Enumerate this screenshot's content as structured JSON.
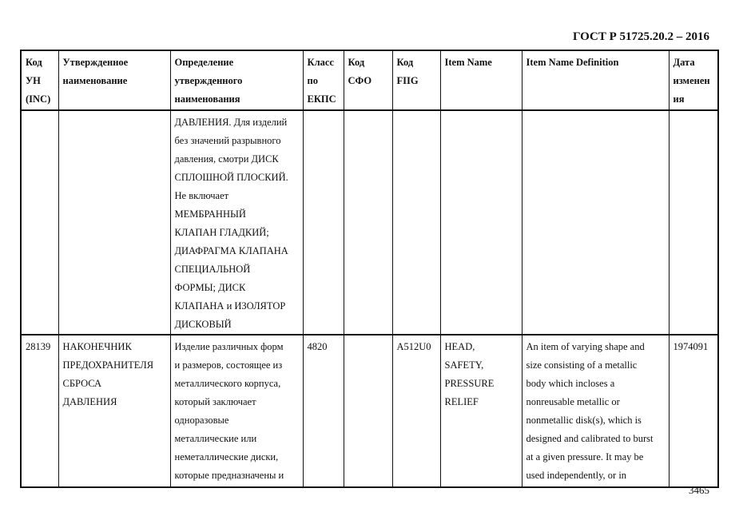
{
  "header": {
    "doc_title": "ГОСТ Р 51725.20.2 – 2016"
  },
  "footer": {
    "page_number": "3465"
  },
  "table": {
    "columns": [
      "Код\nУН\n(INC)",
      "Утвержденное\nнаименование",
      "Определение\nутвержденного\nнаименования",
      "Класс\nпо\nЕКПС",
      "Код\nСФО",
      "Код\nFIIG",
      "Item Name",
      "Item Name Definition",
      "Дата\nизменен\nия"
    ],
    "rows": [
      [
        "",
        "",
        "ДАВЛЕНИЯ. Для изделий\nбез значений разрывного\nдавления, смотри ДИСК\nСПЛОШНОЙ ПЛОСКИЙ.\nНе включает\nМЕМБРАННЫЙ\nКЛАПАН ГЛАДКИЙ;\nДИАФРАГМА КЛАПАНА\nСПЕЦИАЛЬНОЙ\nФОРМЫ; ДИСК\nКЛАПАНА и ИЗОЛЯТОР\nДИСКОВЫЙ",
        "",
        "",
        "",
        "",
        "",
        ""
      ],
      [
        "28139",
        "НАКОНЕЧНИК\nПРЕДОХРАНИТЕЛЯ\nСБРОСА\nДАВЛЕНИЯ",
        "Изделие различных форм\nи размеров, состоящее из\nметаллического корпуса,\nкоторый заключает\nодноразовые\nметаллические или\nнеметаллические диски,\nкоторые предназначены и",
        "4820",
        "",
        "A512U0",
        "HEAD,\nSAFETY,\nPRESSURE\nRELIEF",
        "An item of varying shape and\nsize consisting of a metallic\nbody which incloses a\nnonreusable metallic or\nnonmetallic disk(s), which is\ndesigned and calibrated to burst\nat a given pressure. It may be\nused independently, or in",
        "1974091"
      ]
    ]
  }
}
